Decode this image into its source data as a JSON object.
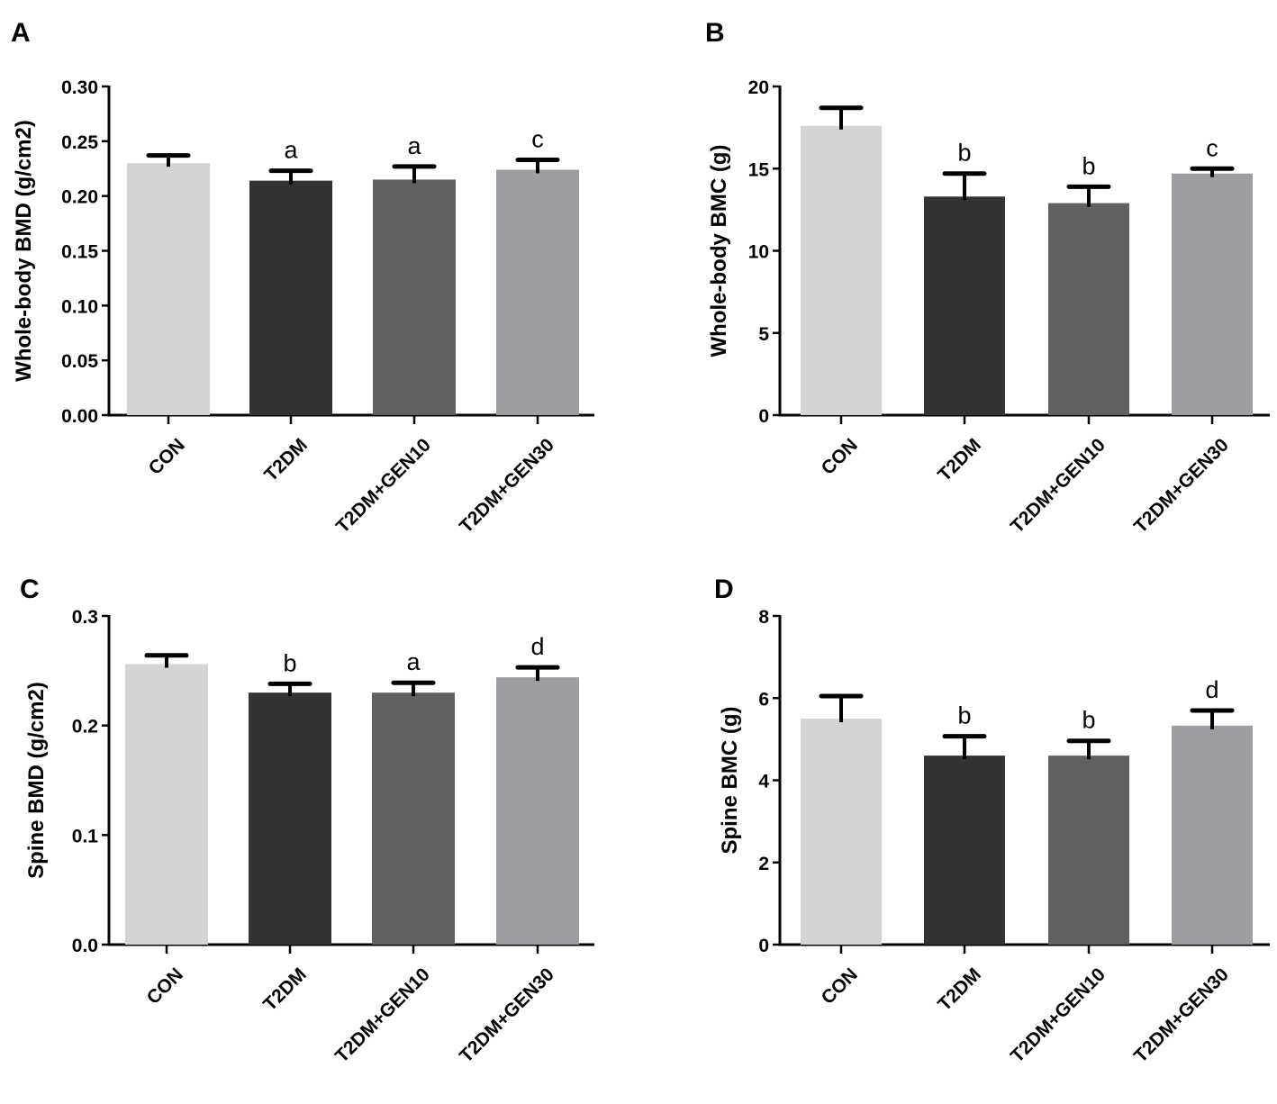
{
  "figure": {
    "colors": {
      "CON": "#d4d4d4",
      "T2DM": "#333333",
      "T2DM+GEN10": "#616161",
      "T2DM+GEN30": "#9e9ea2"
    }
  },
  "chart_data": [
    {
      "panel": "A",
      "type": "bar",
      "title": "",
      "xlabel": "",
      "ylabel": "Whole-body BMD (g/cm2)",
      "ylim": [
        0,
        0.3
      ],
      "yticks": [
        0.0,
        0.05,
        0.1,
        0.15,
        0.2,
        0.25,
        0.3
      ],
      "ytick_labels": [
        "0.00",
        "0.05",
        "0.10",
        "0.15",
        "0.20",
        "0.25",
        "0.30"
      ],
      "categories": [
        "CON",
        "T2DM",
        "T2DM+GEN10",
        "T2DM+GEN30"
      ],
      "values": [
        0.23,
        0.214,
        0.215,
        0.224
      ],
      "error_upper": [
        0.237,
        0.223,
        0.227,
        0.233
      ],
      "significance": [
        "",
        "a",
        "a",
        "c"
      ],
      "grid": false
    },
    {
      "panel": "B",
      "type": "bar",
      "title": "",
      "xlabel": "",
      "ylabel": "Whole-body BMC (g)",
      "ylim": [
        0,
        20
      ],
      "yticks": [
        0,
        5,
        10,
        15,
        20
      ],
      "ytick_labels": [
        "0",
        "5",
        "10",
        "15",
        "20"
      ],
      "categories": [
        "CON",
        "T2DM",
        "T2DM+GEN10",
        "T2DM+GEN30"
      ],
      "values": [
        17.6,
        13.3,
        12.9,
        14.7
      ],
      "error_upper": [
        18.7,
        14.7,
        13.9,
        15.0
      ],
      "significance": [
        "",
        "b",
        "b",
        "c"
      ],
      "grid": false
    },
    {
      "panel": "C",
      "type": "bar",
      "title": "",
      "xlabel": "",
      "ylabel": "Spine BMD (g/cm2)",
      "ylim": [
        0,
        0.3
      ],
      "yticks": [
        0.0,
        0.1,
        0.2,
        0.3
      ],
      "ytick_labels": [
        "0.0",
        "0.1",
        "0.2",
        "0.3"
      ],
      "categories": [
        "CON",
        "T2DM",
        "T2DM+GEN10",
        "T2DM+GEN30"
      ],
      "values": [
        0.256,
        0.23,
        0.23,
        0.244
      ],
      "error_upper": [
        0.264,
        0.238,
        0.239,
        0.253
      ],
      "significance": [
        "",
        "b",
        "a",
        "d"
      ],
      "grid": false
    },
    {
      "panel": "D",
      "type": "bar",
      "title": "",
      "xlabel": "",
      "ylabel": "Spine BMC (g)",
      "ylim": [
        0,
        8
      ],
      "yticks": [
        0,
        2,
        4,
        6,
        8
      ],
      "ytick_labels": [
        "0",
        "2",
        "4",
        "6",
        "8"
      ],
      "categories": [
        "CON",
        "T2DM",
        "T2DM+GEN10",
        "T2DM+GEN30"
      ],
      "values": [
        5.5,
        4.6,
        4.6,
        5.33
      ],
      "error_upper": [
        6.05,
        5.07,
        4.96,
        5.7
      ],
      "significance": [
        "",
        "b",
        "b",
        "d"
      ],
      "grid": false
    }
  ]
}
